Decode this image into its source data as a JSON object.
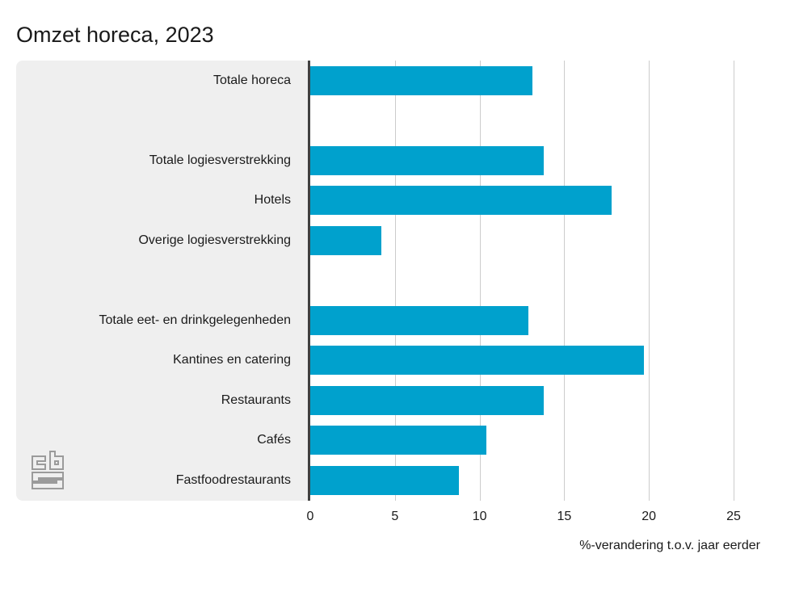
{
  "chart_data": {
    "type": "bar",
    "orientation": "horizontal",
    "title": "Omzet horeca, 2023",
    "xlabel": "%-verandering t.o.v. jaar eerder",
    "categories": [
      "Totale horeca",
      "",
      "Totale logiesverstrekking",
      "Hotels",
      "Overige logiesverstrekking",
      "",
      "Totale eet- en drinkgelegenheden",
      "Kantines en catering",
      "Restaurants",
      "Cafés",
      "Fastfoodrestaurants"
    ],
    "values": [
      13.1,
      null,
      13.8,
      17.8,
      4.2,
      null,
      12.9,
      19.7,
      13.8,
      10.4,
      8.8
    ],
    "xticks": [
      0,
      5,
      10,
      15,
      20,
      25
    ],
    "xlim": [
      0,
      27.5
    ],
    "grid": "vertical",
    "legend": "none",
    "colors": {
      "bar": "#00a1cd",
      "panel_background": "#efefef",
      "axis_line": "#404040",
      "gridline": "#cccccc",
      "text": "#1a1a1a",
      "logo": "#9b9b9b"
    },
    "source_logo": "CBS"
  }
}
